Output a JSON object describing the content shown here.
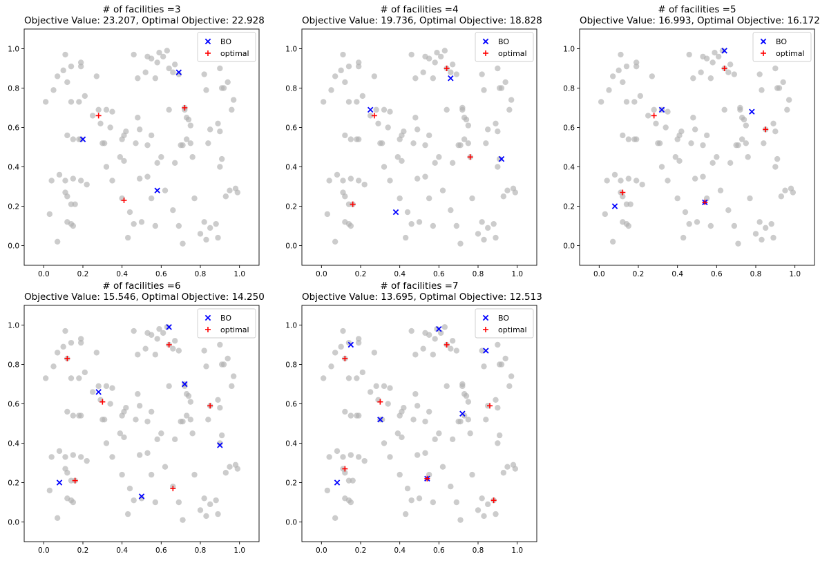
{
  "legend": {
    "bo_label": "BO",
    "optimal_label": "optimal",
    "placement": "top-right"
  },
  "colors": {
    "customer": "#b0b0b0",
    "bo": "#0000ff",
    "optimal": "#ff0000",
    "axis": "#000000"
  },
  "axis_ticks": {
    "x": [
      "0.0",
      "0.2",
      "0.4",
      "0.6",
      "0.8",
      "1.0"
    ],
    "y": [
      "0.0",
      "0.2",
      "0.4",
      "0.6",
      "0.8",
      "1.0"
    ]
  },
  "customers": [
    [
      0.01,
      0.73
    ],
    [
      0.05,
      0.79
    ],
    [
      0.07,
      0.86
    ],
    [
      0.1,
      0.89
    ],
    [
      0.12,
      0.83
    ],
    [
      0.14,
      0.91
    ],
    [
      0.19,
      0.93
    ],
    [
      0.19,
      0.91
    ],
    [
      0.11,
      0.97
    ],
    [
      0.27,
      0.86
    ],
    [
      0.28,
      0.69
    ],
    [
      0.21,
      0.76
    ],
    [
      0.18,
      0.73
    ],
    [
      0.25,
      0.66
    ],
    [
      0.29,
      0.62
    ],
    [
      0.3,
      0.52
    ],
    [
      0.31,
      0.52
    ],
    [
      0.32,
      0.69
    ],
    [
      0.35,
      0.68
    ],
    [
      0.34,
      0.6
    ],
    [
      0.32,
      0.4
    ],
    [
      0.39,
      0.45
    ],
    [
      0.4,
      0.54
    ],
    [
      0.41,
      0.56
    ],
    [
      0.42,
      0.58
    ],
    [
      0.46,
      0.97
    ],
    [
      0.47,
      0.52
    ],
    [
      0.48,
      0.85
    ],
    [
      0.49,
      0.59
    ],
    [
      0.52,
      0.88
    ],
    [
      0.53,
      0.96
    ],
    [
      0.55,
      0.95
    ],
    [
      0.57,
      0.85
    ],
    [
      0.58,
      0.93
    ],
    [
      0.59,
      0.98
    ],
    [
      0.61,
      0.96
    ],
    [
      0.63,
      0.99
    ],
    [
      0.64,
      0.9
    ],
    [
      0.66,
      0.88
    ],
    [
      0.67,
      0.92
    ],
    [
      0.69,
      0.87
    ],
    [
      0.72,
      0.7
    ],
    [
      0.72,
      0.69
    ],
    [
      0.73,
      0.65
    ],
    [
      0.74,
      0.64
    ],
    [
      0.75,
      0.61
    ],
    [
      0.7,
      0.51
    ],
    [
      0.71,
      0.51
    ],
    [
      0.73,
      0.54
    ],
    [
      0.75,
      0.52
    ],
    [
      0.76,
      0.45
    ],
    [
      0.82,
      0.87
    ],
    [
      0.83,
      0.79
    ],
    [
      0.84,
      0.52
    ],
    [
      0.85,
      0.59
    ],
    [
      0.9,
      0.9
    ],
    [
      0.91,
      0.8
    ],
    [
      0.92,
      0.8
    ],
    [
      0.94,
      0.83
    ],
    [
      0.89,
      0.62
    ],
    [
      0.9,
      0.58
    ],
    [
      0.91,
      0.44
    ],
    [
      0.9,
      0.4
    ],
    [
      0.93,
      0.25
    ],
    [
      0.95,
      0.28
    ],
    [
      0.12,
      0.56
    ],
    [
      0.15,
      0.54
    ],
    [
      0.18,
      0.54
    ],
    [
      0.19,
      0.54
    ],
    [
      0.14,
      0.73
    ],
    [
      0.08,
      0.36
    ],
    [
      0.04,
      0.33
    ],
    [
      0.11,
      0.33
    ],
    [
      0.11,
      0.27
    ],
    [
      0.12,
      0.25
    ],
    [
      0.12,
      0.12
    ],
    [
      0.14,
      0.11
    ],
    [
      0.15,
      0.1
    ],
    [
      0.14,
      0.21
    ],
    [
      0.16,
      0.21
    ],
    [
      0.15,
      0.34
    ],
    [
      0.19,
      0.33
    ],
    [
      0.22,
      0.31
    ],
    [
      0.03,
      0.16
    ],
    [
      0.07,
      0.02
    ],
    [
      0.35,
      0.33
    ],
    [
      0.4,
      0.24
    ],
    [
      0.43,
      0.04
    ],
    [
      0.44,
      0.17
    ],
    [
      0.46,
      0.11
    ],
    [
      0.49,
      0.34
    ],
    [
      0.5,
      0.12
    ],
    [
      0.53,
      0.35
    ],
    [
      0.55,
      0.24
    ],
    [
      0.57,
      0.1
    ],
    [
      0.58,
      0.42
    ],
    [
      0.6,
      0.45
    ],
    [
      0.62,
      0.28
    ],
    [
      0.64,
      0.69
    ],
    [
      0.66,
      0.18
    ],
    [
      0.69,
      0.1
    ],
    [
      0.71,
      0.01
    ],
    [
      0.77,
      0.24
    ],
    [
      0.8,
      0.06
    ],
    [
      0.82,
      0.12
    ],
    [
      0.83,
      0.03
    ],
    [
      0.85,
      0.09
    ],
    [
      0.88,
      0.11
    ],
    [
      0.89,
      0.04
    ],
    [
      0.98,
      0.29
    ],
    [
      0.99,
      0.27
    ],
    [
      0.96,
      0.69
    ],
    [
      0.97,
      0.74
    ],
    [
      0.55,
      0.56
    ],
    [
      0.53,
      0.51
    ],
    [
      0.67,
      0.42
    ],
    [
      0.48,
      0.65
    ],
    [
      0.41,
      0.43
    ]
  ],
  "chart_data": [
    {
      "type": "scatter",
      "title": "# of facilities =3",
      "subtitle": "Objective Value:  23.207, Optimal Objective:  22.928",
      "xlim": [
        -0.1,
        1.1
      ],
      "ylim": [
        -0.1,
        1.1
      ],
      "grid": false,
      "legend": "top-right",
      "series": [
        {
          "name": "BO",
          "marker": "x",
          "points": [
            [
              0.2,
              0.54
            ],
            [
              0.58,
              0.28
            ],
            [
              0.69,
              0.88
            ]
          ]
        },
        {
          "name": "optimal",
          "marker": "+",
          "points": [
            [
              0.28,
              0.66
            ],
            [
              0.41,
              0.23
            ],
            [
              0.72,
              0.7
            ]
          ]
        }
      ]
    },
    {
      "type": "scatter",
      "title": "# of facilities =4",
      "subtitle": "Objective Value:  19.736, Optimal Objective:  18.828",
      "xlim": [
        -0.1,
        1.1
      ],
      "ylim": [
        -0.1,
        1.1
      ],
      "grid": false,
      "legend": "top-right",
      "series": [
        {
          "name": "BO",
          "marker": "x",
          "points": [
            [
              0.25,
              0.69
            ],
            [
              0.38,
              0.17
            ],
            [
              0.66,
              0.85
            ],
            [
              0.92,
              0.44
            ]
          ]
        },
        {
          "name": "optimal",
          "marker": "+",
          "points": [
            [
              0.27,
              0.66
            ],
            [
              0.16,
              0.21
            ],
            [
              0.64,
              0.9
            ],
            [
              0.76,
              0.45
            ]
          ]
        }
      ]
    },
    {
      "type": "scatter",
      "title": "# of facilities =5",
      "subtitle": "Objective Value:  16.993, Optimal Objective:  16.172",
      "xlim": [
        -0.1,
        1.1
      ],
      "ylim": [
        -0.1,
        1.1
      ],
      "grid": false,
      "legend": "top-right",
      "series": [
        {
          "name": "BO",
          "marker": "x",
          "points": [
            [
              0.08,
              0.2
            ],
            [
              0.32,
              0.69
            ],
            [
              0.54,
              0.22
            ],
            [
              0.64,
              0.99
            ],
            [
              0.78,
              0.68
            ]
          ]
        },
        {
          "name": "optimal",
          "marker": "+",
          "points": [
            [
              0.12,
              0.27
            ],
            [
              0.28,
              0.66
            ],
            [
              0.54,
              0.22
            ],
            [
              0.64,
              0.9
            ],
            [
              0.85,
              0.59
            ]
          ]
        }
      ]
    },
    {
      "type": "scatter",
      "title": "# of facilities =6",
      "subtitle": "Objective Value:  15.546, Optimal Objective:  14.250",
      "xlim": [
        -0.1,
        1.1
      ],
      "ylim": [
        -0.1,
        1.1
      ],
      "grid": false,
      "legend": "top-right",
      "series": [
        {
          "name": "BO",
          "marker": "x",
          "points": [
            [
              0.08,
              0.2
            ],
            [
              0.28,
              0.66
            ],
            [
              0.5,
              0.13
            ],
            [
              0.64,
              0.99
            ],
            [
              0.72,
              0.7
            ],
            [
              0.9,
              0.39
            ]
          ]
        },
        {
          "name": "optimal",
          "marker": "+",
          "points": [
            [
              0.12,
              0.83
            ],
            [
              0.16,
              0.21
            ],
            [
              0.3,
              0.61
            ],
            [
              0.64,
              0.9
            ],
            [
              0.66,
              0.17
            ],
            [
              0.85,
              0.59
            ]
          ]
        }
      ]
    },
    {
      "type": "scatter",
      "title": "# of facilities =7",
      "subtitle": "Objective Value:  13.695, Optimal Objective:  12.513",
      "xlim": [
        -0.1,
        1.1
      ],
      "ylim": [
        -0.1,
        1.1
      ],
      "grid": false,
      "legend": "top-right",
      "series": [
        {
          "name": "BO",
          "marker": "x",
          "points": [
            [
              0.08,
              0.2
            ],
            [
              0.15,
              0.9
            ],
            [
              0.3,
              0.52
            ],
            [
              0.54,
              0.22
            ],
            [
              0.6,
              0.98
            ],
            [
              0.72,
              0.55
            ],
            [
              0.84,
              0.87
            ]
          ]
        },
        {
          "name": "optimal",
          "marker": "+",
          "points": [
            [
              0.12,
              0.27
            ],
            [
              0.12,
              0.83
            ],
            [
              0.3,
              0.61
            ],
            [
              0.54,
              0.22
            ],
            [
              0.64,
              0.9
            ],
            [
              0.86,
              0.59
            ],
            [
              0.88,
              0.11
            ]
          ]
        }
      ]
    }
  ]
}
